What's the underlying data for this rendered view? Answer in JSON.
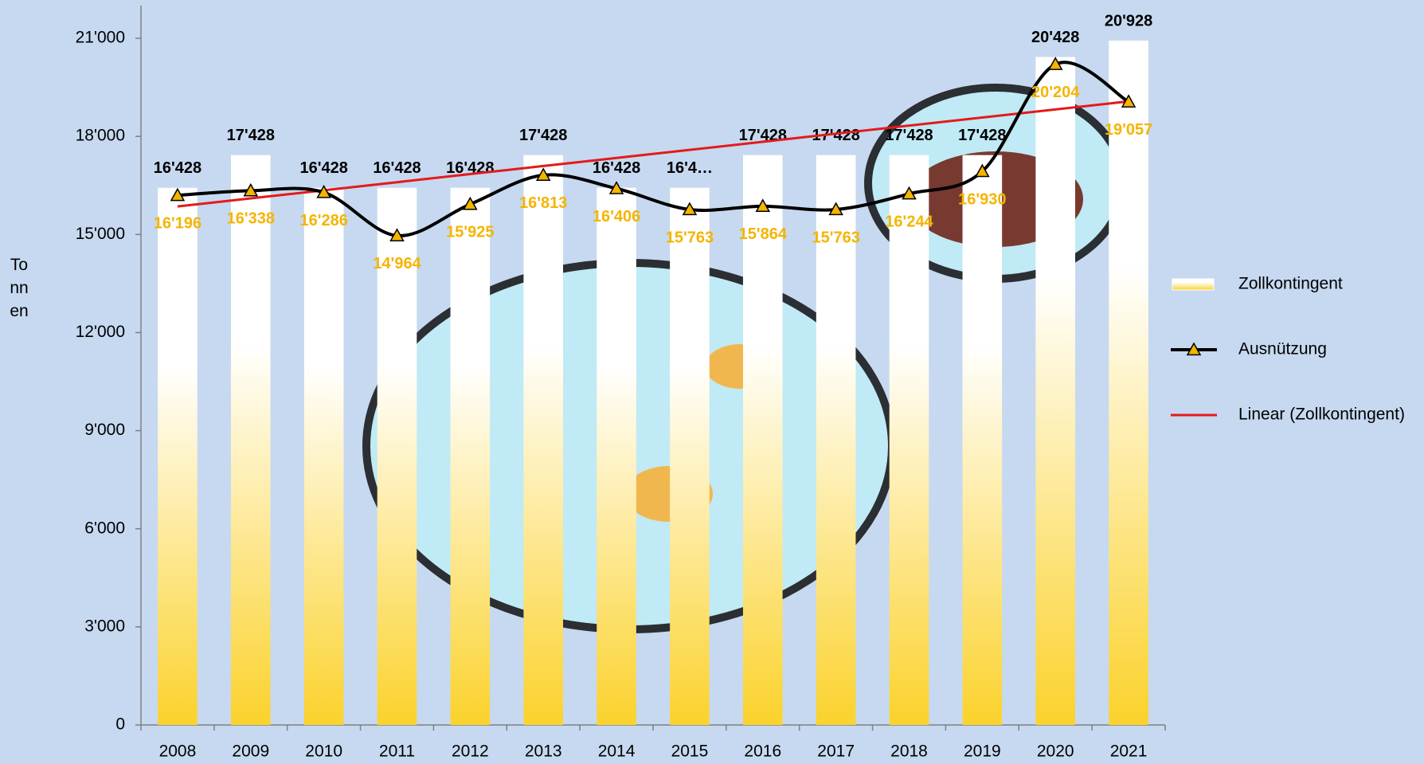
{
  "chart_data": {
    "type": "bar-line",
    "y_label": "Tonnen",
    "categories": [
      "2008",
      "2009",
      "2010",
      "2011",
      "2012",
      "2013",
      "2014",
      "2015",
      "2016",
      "2017",
      "2018",
      "2019",
      "2020",
      "2021"
    ],
    "ylim": [
      0,
      22000
    ],
    "yticks": [
      0,
      {
        "value": 3000,
        "label": "3'000"
      },
      {
        "value": 6000,
        "label": "6'000"
      },
      {
        "value": 9000,
        "label": "9'000"
      },
      {
        "value": 12000,
        "label": "12'000"
      },
      {
        "value": 15000,
        "label": "15'000"
      },
      {
        "value": 18000,
        "label": "18'000"
      },
      {
        "value": 21000,
        "label": "21'000"
      }
    ],
    "series": [
      {
        "name": "Zollkontingent",
        "type": "bar",
        "color": "#fbd22c",
        "values": [
          16428,
          17428,
          16428,
          16428,
          16428,
          17428,
          16428,
          16428,
          17428,
          17428,
          17428,
          17428,
          20428,
          20928
        ],
        "value_labels": [
          "16'428",
          "17'428",
          "16'428",
          "16'428",
          "16'428",
          "17'428",
          "16'428",
          "16'4…",
          "17'428",
          "17'428",
          "17'428",
          "17'428",
          "20'428",
          "20'928"
        ]
      },
      {
        "name": "Ausnützung",
        "type": "line",
        "color": "#000000",
        "marker_color": "#f5b400",
        "values": [
          16196,
          16338,
          16286,
          14964,
          15925,
          16813,
          16406,
          15763,
          15864,
          15763,
          16244,
          16930,
          20204,
          19057
        ],
        "value_labels": [
          "16'196",
          "16'338",
          "16'286",
          "14'964",
          "15'925",
          "16'813",
          "16'406",
          "15'763",
          "15'864",
          "15'763",
          "16'244",
          "16'930",
          "20'204",
          "19'057"
        ]
      },
      {
        "name": "Linear (Zollkontingent)",
        "type": "trend",
        "color": "#e41a1a",
        "values": [
          15857,
          16104,
          16351,
          16598,
          16846,
          17093,
          17340,
          17587,
          17835,
          18082,
          18329,
          18576,
          18824,
          19071
        ]
      }
    ]
  }
}
